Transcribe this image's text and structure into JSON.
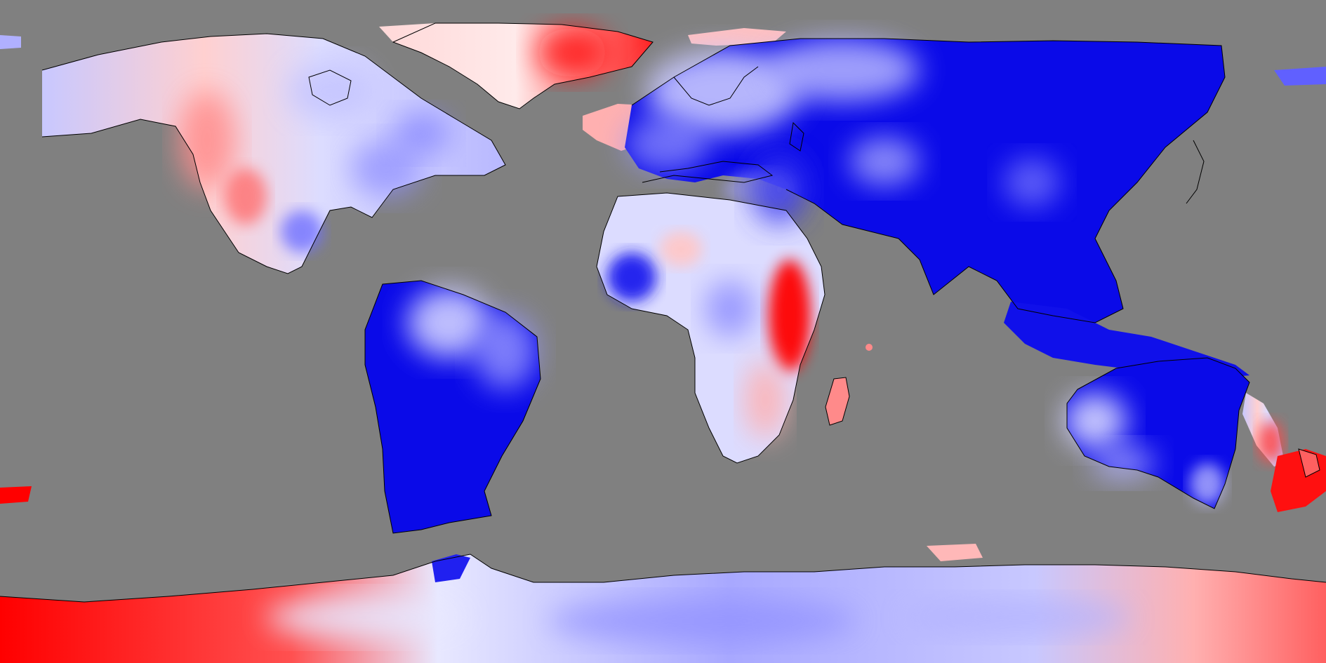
{
  "map": {
    "projection": "equirectangular",
    "colors": {
      "ocean": "#808080",
      "strong_negative": "#0000f0",
      "mid_negative": "#8c8cff",
      "weak_negative": "#d2d2ff",
      "neutral": "#ffffff",
      "weak_positive": "#ffd2d2",
      "mid_positive": "#ff8080",
      "strong_positive": "#ff0000",
      "coastline": "#000000"
    },
    "regions": [
      {
        "name": "north-america",
        "tone": "weak_negative"
      },
      {
        "name": "greenland",
        "tone": "mid_positive"
      },
      {
        "name": "south-america",
        "tone": "strong_negative"
      },
      {
        "name": "europe-asia",
        "tone": "strong_negative"
      },
      {
        "name": "africa",
        "tone": "weak_negative"
      },
      {
        "name": "east-africa",
        "tone": "strong_positive"
      },
      {
        "name": "australia",
        "tone": "strong_negative"
      },
      {
        "name": "new-zealand",
        "tone": "strong_positive"
      },
      {
        "name": "antarctica",
        "tone": "weak_negative"
      }
    ]
  }
}
